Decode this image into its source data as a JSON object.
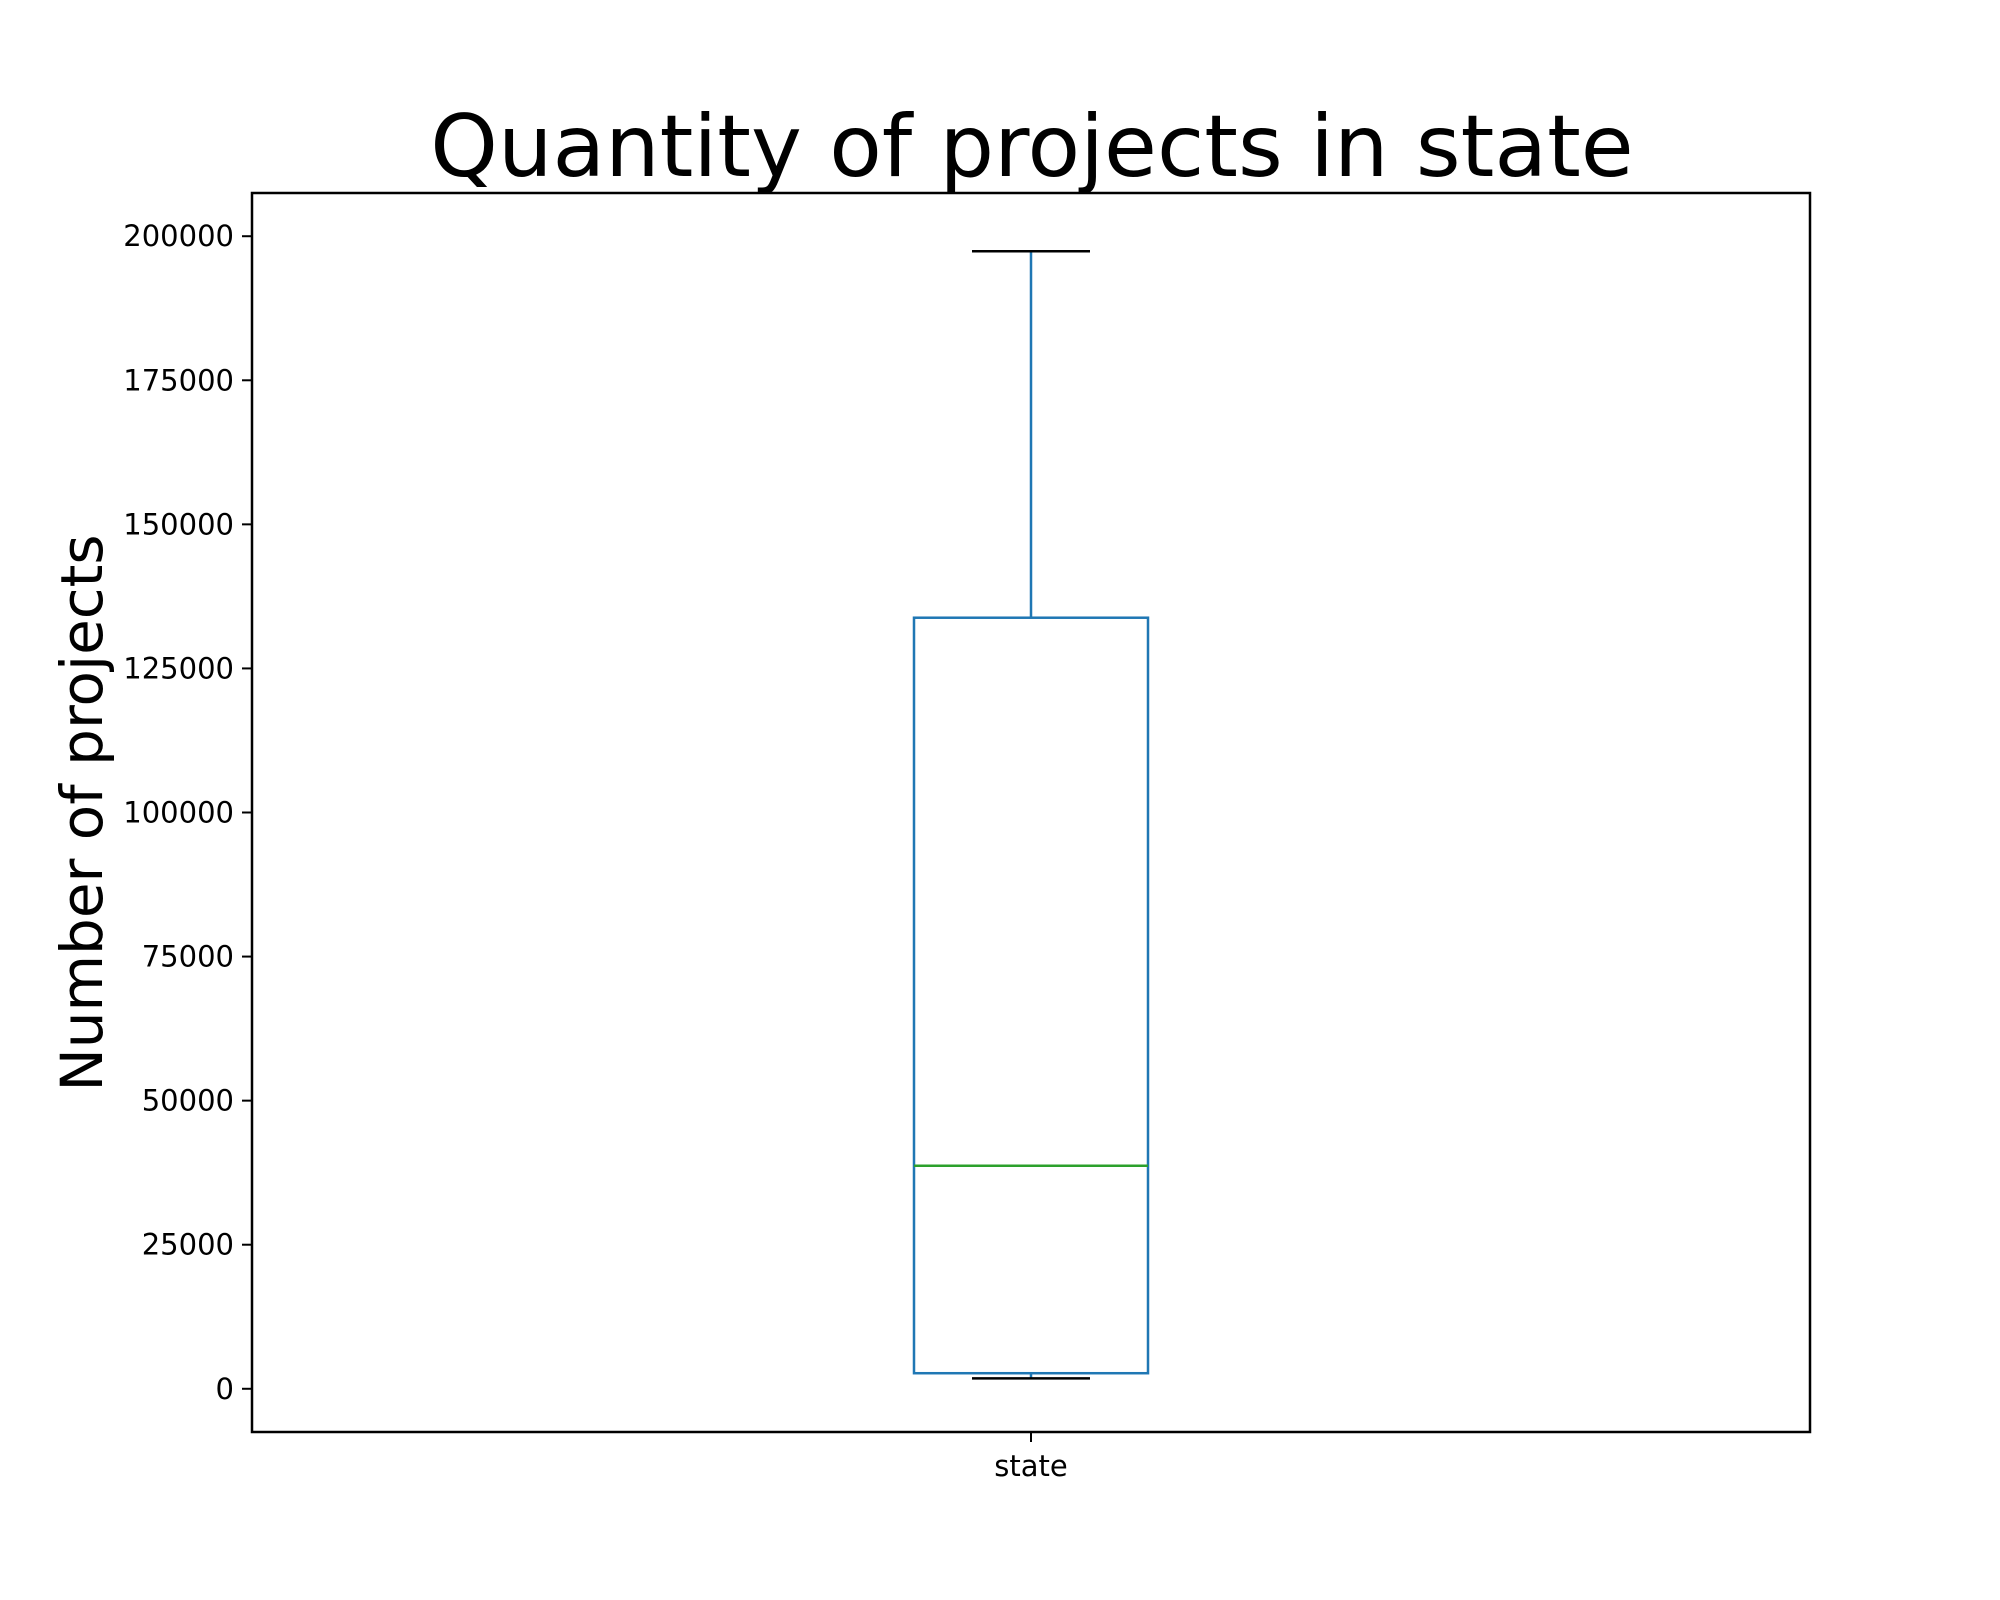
{
  "chart_data": {
    "type": "box",
    "title": "Quantity of projects in state",
    "xlabel": "",
    "ylabel": "Number of projects",
    "categories": [
      "state"
    ],
    "boxes": [
      {
        "category": "state",
        "whisker_low": 1800,
        "q1": 2700,
        "median": 38700,
        "q3": 133800,
        "whisker_high": 197400
      }
    ],
    "ylim": [
      -7500,
      207500
    ],
    "yticks": [
      0,
      25000,
      50000,
      75000,
      100000,
      125000,
      150000,
      175000,
      200000
    ],
    "ytick_labels": [
      "0",
      "25000",
      "50000",
      "75000",
      "100000",
      "125000",
      "150000",
      "175000",
      "200000"
    ],
    "grid": false,
    "colors": {
      "box": "#1f77b4",
      "whisker": "#1f77b4",
      "cap": "#000000",
      "median": "#2ca02c"
    }
  }
}
